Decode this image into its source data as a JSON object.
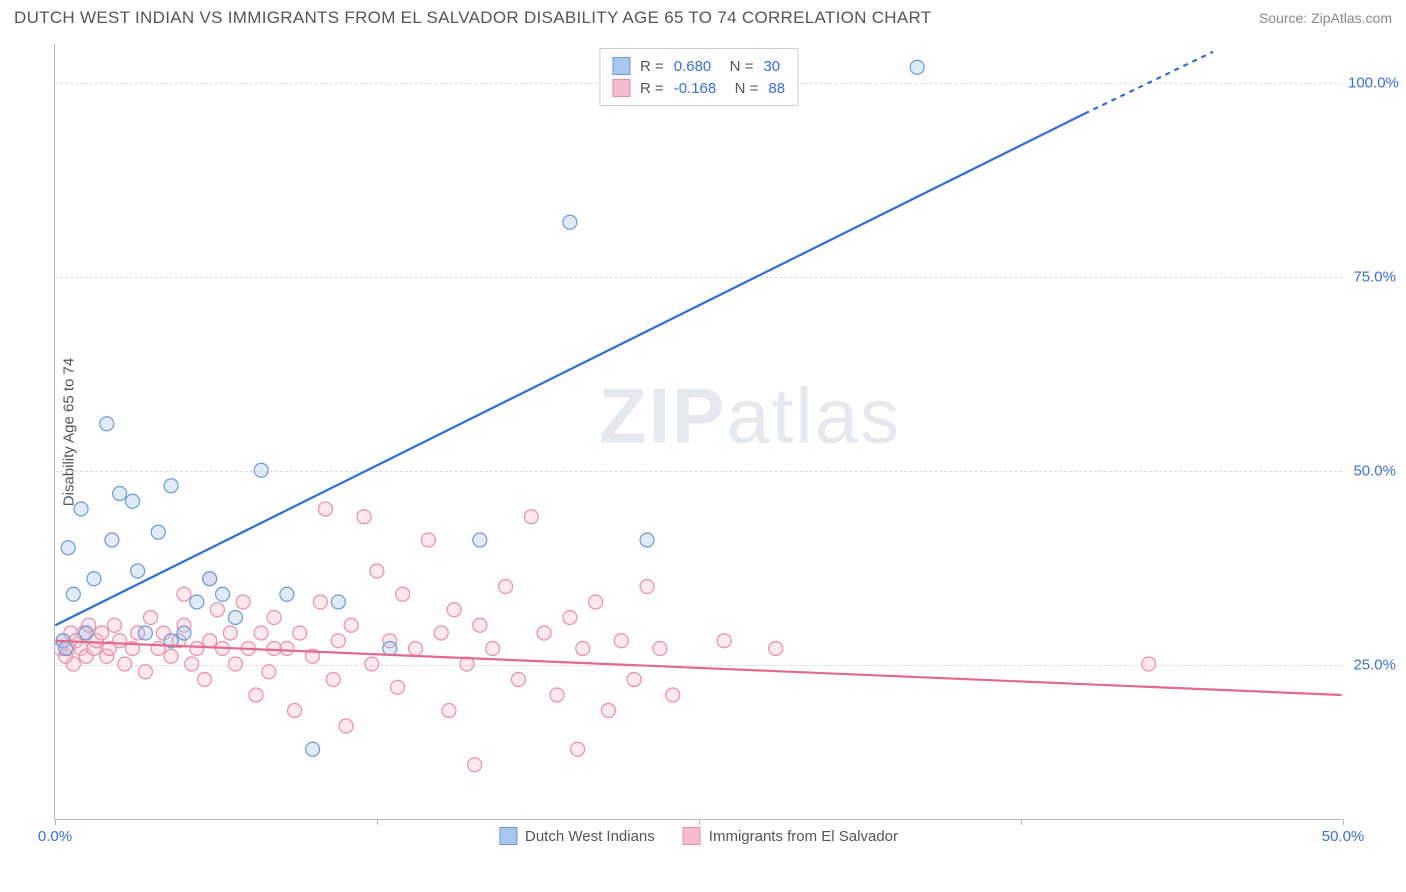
{
  "title": "DUTCH WEST INDIAN VS IMMIGRANTS FROM EL SALVADOR DISABILITY AGE 65 TO 74 CORRELATION CHART",
  "source": "Source: ZipAtlas.com",
  "ylabel": "Disability Age 65 to 74",
  "watermark_bold": "ZIP",
  "watermark_light": "atlas",
  "chart": {
    "type": "scatter",
    "background_color": "#ffffff",
    "grid_color": "#dddddd",
    "axis_color": "#bbbbbb",
    "text_color": "#555555",
    "value_color": "#3a6fd8",
    "xlim": [
      0,
      50
    ],
    "ylim": [
      5,
      105
    ],
    "xticks": [
      0,
      12.5,
      25,
      37.5,
      50
    ],
    "xtick_labels": [
      "0.0%",
      "",
      "",
      "",
      "50.0%"
    ],
    "yticks": [
      25,
      50,
      75,
      100
    ],
    "ytick_labels": [
      "25.0%",
      "50.0%",
      "75.0%",
      "100.0%"
    ],
    "marker_radius": 7,
    "line_width": 2.2,
    "series": [
      {
        "name": "Dutch West Indians",
        "color_fill": "#a9c6ec",
        "color_stroke": "#6a9bd8",
        "line_color": "#2f6fd0",
        "r": "0.680",
        "n": "30",
        "trend": {
          "x1": 0,
          "y1": 30,
          "x2": 40,
          "y2": 96
        },
        "trend_dash": {
          "x1": 40,
          "y1": 96,
          "x2": 45,
          "y2": 104
        },
        "points": [
          [
            0.3,
            28
          ],
          [
            0.4,
            27
          ],
          [
            0.5,
            40
          ],
          [
            0.7,
            34
          ],
          [
            1.0,
            45
          ],
          [
            1.2,
            29
          ],
          [
            1.5,
            36
          ],
          [
            2.0,
            56
          ],
          [
            2.2,
            41
          ],
          [
            2.5,
            47
          ],
          [
            3.0,
            46
          ],
          [
            3.2,
            37
          ],
          [
            4.0,
            42
          ],
          [
            4.5,
            48
          ],
          [
            5.0,
            29
          ],
          [
            5.5,
            33
          ],
          [
            6.0,
            36
          ],
          [
            6.5,
            34
          ],
          [
            7.0,
            31
          ],
          [
            8.0,
            50
          ],
          [
            9.0,
            34
          ],
          [
            10.0,
            14
          ],
          [
            11.0,
            33
          ],
          [
            13.0,
            27
          ],
          [
            16.5,
            41
          ],
          [
            20.0,
            82
          ],
          [
            23.0,
            41
          ],
          [
            4.5,
            28
          ],
          [
            33.5,
            102
          ],
          [
            3.5,
            29
          ]
        ]
      },
      {
        "name": "Immigrants from El Salvador",
        "color_fill": "#f5bccb",
        "color_stroke": "#e98fa8",
        "line_color": "#e26a8c",
        "r": "-0.168",
        "n": "88",
        "trend": {
          "x1": 0,
          "y1": 28,
          "x2": 50,
          "y2": 21
        },
        "points": [
          [
            0.2,
            27
          ],
          [
            0.3,
            28
          ],
          [
            0.4,
            26
          ],
          [
            0.5,
            27
          ],
          [
            0.6,
            29
          ],
          [
            0.7,
            25
          ],
          [
            0.8,
            28
          ],
          [
            1.0,
            27
          ],
          [
            1.1,
            29
          ],
          [
            1.2,
            26
          ],
          [
            1.3,
            30
          ],
          [
            1.5,
            27
          ],
          [
            1.6,
            28
          ],
          [
            1.8,
            29
          ],
          [
            2.0,
            26
          ],
          [
            2.1,
            27
          ],
          [
            2.3,
            30
          ],
          [
            2.5,
            28
          ],
          [
            2.7,
            25
          ],
          [
            3.0,
            27
          ],
          [
            3.2,
            29
          ],
          [
            3.5,
            24
          ],
          [
            3.7,
            31
          ],
          [
            4.0,
            27
          ],
          [
            4.2,
            29
          ],
          [
            4.5,
            26
          ],
          [
            4.8,
            28
          ],
          [
            5.0,
            30
          ],
          [
            5.3,
            25
          ],
          [
            5.5,
            27
          ],
          [
            5.8,
            23
          ],
          [
            6.0,
            28
          ],
          [
            6.3,
            32
          ],
          [
            6.5,
            27
          ],
          [
            6.8,
            29
          ],
          [
            7.0,
            25
          ],
          [
            7.3,
            33
          ],
          [
            7.5,
            27
          ],
          [
            7.8,
            21
          ],
          [
            8.0,
            29
          ],
          [
            8.3,
            24
          ],
          [
            8.5,
            31
          ],
          [
            9.0,
            27
          ],
          [
            9.3,
            19
          ],
          [
            9.5,
            29
          ],
          [
            10.0,
            26
          ],
          [
            10.3,
            33
          ],
          [
            10.5,
            45
          ],
          [
            10.8,
            23
          ],
          [
            11.0,
            28
          ],
          [
            11.3,
            17
          ],
          [
            11.5,
            30
          ],
          [
            12.0,
            44
          ],
          [
            12.3,
            25
          ],
          [
            12.5,
            37
          ],
          [
            13.0,
            28
          ],
          [
            13.3,
            22
          ],
          [
            13.5,
            34
          ],
          [
            14.0,
            27
          ],
          [
            14.5,
            41
          ],
          [
            15.0,
            29
          ],
          [
            15.3,
            19
          ],
          [
            15.5,
            32
          ],
          [
            16.0,
            25
          ],
          [
            16.3,
            12
          ],
          [
            16.5,
            30
          ],
          [
            17.0,
            27
          ],
          [
            17.5,
            35
          ],
          [
            18.0,
            23
          ],
          [
            18.5,
            44
          ],
          [
            19.0,
            29
          ],
          [
            19.5,
            21
          ],
          [
            20.0,
            31
          ],
          [
            20.3,
            14
          ],
          [
            20.5,
            27
          ],
          [
            21.0,
            33
          ],
          [
            21.5,
            19
          ],
          [
            22.0,
            28
          ],
          [
            22.5,
            23
          ],
          [
            23.0,
            35
          ],
          [
            23.5,
            27
          ],
          [
            24.0,
            21
          ],
          [
            26.0,
            28
          ],
          [
            28.0,
            27
          ],
          [
            42.5,
            25
          ],
          [
            5.0,
            34
          ],
          [
            6.0,
            36
          ],
          [
            8.5,
            27
          ]
        ]
      }
    ]
  }
}
